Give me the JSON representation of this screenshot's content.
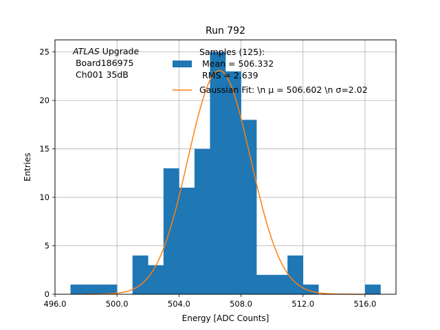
{
  "chart_data": {
    "type": "bar",
    "title": "Run 792",
    "xlabel": "Energy [ADC Counts]",
    "ylabel": "Entries",
    "xlim": [
      496,
      518
    ],
    "ylim": [
      0,
      26.25
    ],
    "x_ticks": [
      496,
      500,
      504,
      508,
      512,
      516
    ],
    "x_tick_labels": [
      "496.0",
      "500.0",
      "504.0",
      "508.0",
      "512.0",
      "516.0"
    ],
    "y_ticks": [
      0,
      5,
      10,
      15,
      20,
      25
    ],
    "y_tick_labels": [
      "0",
      "5",
      "10",
      "15",
      "20",
      "25"
    ],
    "grid": true,
    "histogram": {
      "name": "Samples (125):",
      "color": "#1f77b4",
      "bin_edges": [
        497,
        498,
        499,
        500,
        501,
        502,
        503,
        504,
        505,
        506,
        507,
        508,
        509,
        510,
        511,
        512,
        513,
        514,
        515,
        516,
        517
      ],
      "counts": [
        1,
        1,
        1,
        0,
        4,
        3,
        13,
        11,
        15,
        25,
        23,
        18,
        2,
        2,
        4,
        1,
        0,
        0,
        0,
        1
      ]
    },
    "fit": {
      "name": "Gaussian Fit",
      "color": "#ff7f0e",
      "mu": 506.602,
      "sigma": 2.02,
      "amplitude": 23.1,
      "x_range": [
        497.8,
        516
      ]
    },
    "annotation": {
      "line1_italic": "ATLAS",
      "line1_rest": " Upgrade",
      "line2": " Board186975",
      "line3": " Ch001 35dB"
    },
    "legend": {
      "position": "top-right",
      "hist_lines": [
        "Samples (125):",
        " Mean = 506.332",
        " RMS = 2.639"
      ],
      "fit_label": "Gaussian Fit: \\n μ = 506.602 \\n σ=2.02"
    }
  }
}
